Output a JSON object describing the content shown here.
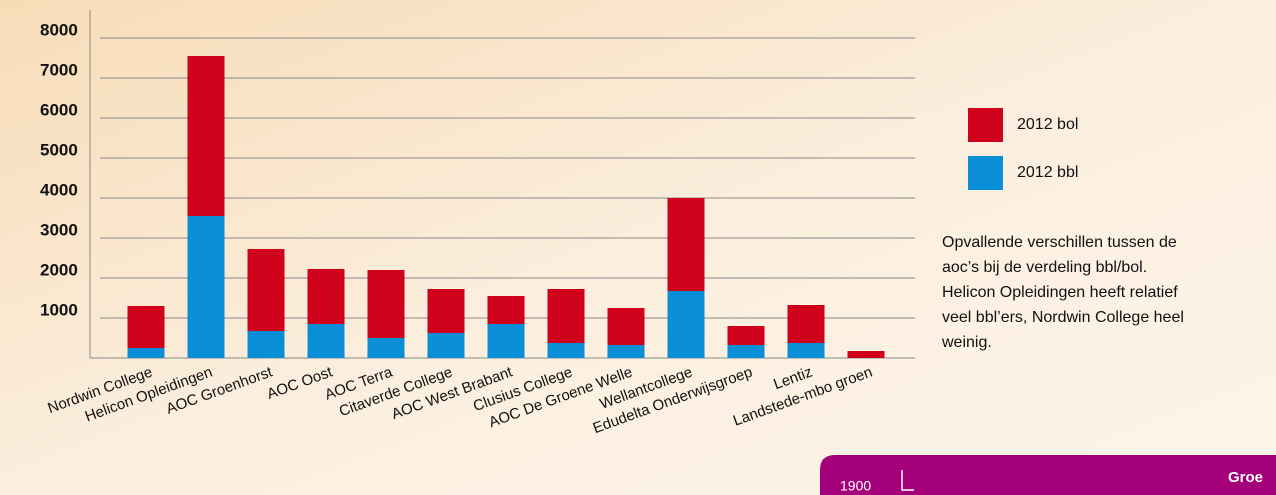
{
  "chart_data": {
    "type": "stacked_bar",
    "categories": [
      "Nordwin College",
      "Helicon Opleidingen",
      "AOC Groenhorst",
      "AOC Oost",
      "AOC Terra",
      "Citaverde College",
      "AOC West Brabant",
      "Clusius College",
      "AOC De Groene Welle",
      "Wellantcollege",
      "Edudelta Onderwijsgroep",
      "Lentiz",
      "Landstede-mbo groen"
    ],
    "series": [
      {
        "name": "2012 bbl",
        "color": "#0a8fd6",
        "values": [
          250,
          3550,
          675,
          850,
          500,
          625,
          850,
          375,
          325,
          1675,
          325,
          375,
          0
        ]
      },
      {
        "name": "2012 bol",
        "color": "#d0021b",
        "values": [
          1050,
          4000,
          2050,
          1375,
          1700,
          1100,
          700,
          1350,
          925,
          2325,
          475,
          950,
          175
        ]
      }
    ],
    "ylim": [
      0,
      8000
    ],
    "yticks": [
      1000,
      2000,
      3000,
      4000,
      5000,
      6000,
      7000,
      8000
    ],
    "grid": true,
    "annotation": [
      "Opvallende verschillen tussen de",
      "aoc’s bij de verdeling bbl/bol.",
      "Helicon Opleidingen heeft relatief",
      "veel bbl’ers, Nordwin College heel",
      "weinig."
    ]
  },
  "footer": {
    "page": "1900",
    "label": "Groe"
  }
}
